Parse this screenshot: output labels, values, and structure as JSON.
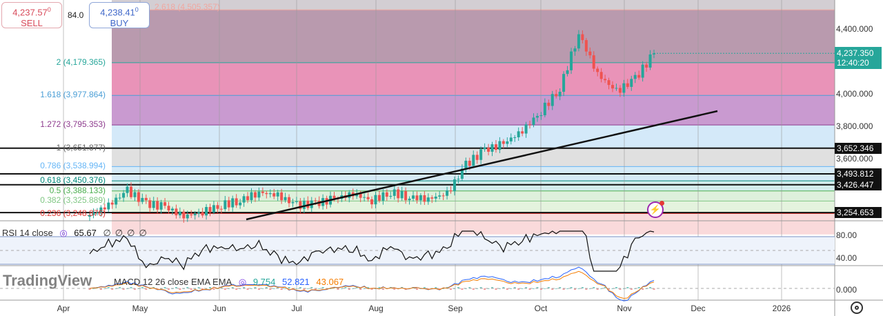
{
  "trade": {
    "sell_price": "4,237.57",
    "sell_sup": "0",
    "sell_label": "SELL",
    "spread": "84.0",
    "buy_price": "4,238.41",
    "buy_sup": "0",
    "buy_label": "BUY"
  },
  "fib_levels": [
    {
      "label": "2.618 (4,505.357)",
      "price": 4505.357,
      "color": "#f0a7a0"
    },
    {
      "label": "2 (4,179.365)",
      "price": 4179.365,
      "color": "#26a69a"
    },
    {
      "label": "1.618 (3,977.864)",
      "price": 3977.864,
      "color": "#4a9ed6"
    },
    {
      "label": "1.272 (3,795.353)",
      "price": 3795.353,
      "color": "#8e3b8e"
    },
    {
      "label": "1 (3,651.877)",
      "price": 3651.877,
      "color": "#666666"
    },
    {
      "label": "0.786 (3,538.994)",
      "price": 3538.994,
      "color": "#64b5f6"
    },
    {
      "label": "0.618 (3,450.376)",
      "price": 3450.376,
      "color": "#00897b"
    },
    {
      "label": "0.5 (3,388.133)",
      "price": 3388.133,
      "color": "#4caf50"
    },
    {
      "label": "0.382 (3,325.889)",
      "price": 3325.889,
      "color": "#81c784"
    },
    {
      "label": "0.236 (3,248.876)",
      "price": 3248.876,
      "color": "#e53935"
    }
  ],
  "fib_zero_price": 3120,
  "price_axis": {
    "ticks": [
      "4,400.000",
      "4,000.000",
      "3,800.000",
      "3,600.000"
    ],
    "tick_values": [
      4400,
      4000,
      3800,
      3600
    ],
    "current_price": "4,237.350",
    "countdown": "12:40:20",
    "horizontal_lines": [
      {
        "label": "3,652.346",
        "price": 3652.346
      },
      {
        "label": "3,493.812",
        "price": 3493.812
      },
      {
        "label": "3,426.447",
        "price": 3426.447
      },
      {
        "label": "3,254.653",
        "price": 3254.653
      }
    ]
  },
  "rsi": {
    "title": "RSI 14 close",
    "value": "65.67",
    "extra": [
      "∅",
      "∅",
      "∅",
      "∅"
    ],
    "ticks": [
      "80.00",
      "40.00"
    ]
  },
  "macd": {
    "title": "MACD 12 26 close EMA EMA",
    "values": [
      "9.754",
      "52.821",
      "43.067"
    ],
    "value_colors": [
      "#26a69a",
      "#2962ff",
      "#f57c00"
    ],
    "ticks": [
      "0.000"
    ]
  },
  "time_axis": [
    "Apr",
    "May",
    "Jun",
    "Jul",
    "Aug",
    "Sep",
    "Oct",
    "Nov",
    "Dec",
    "2026"
  ],
  "watermark": "TradingView",
  "weekly_closes": [
    3240,
    3300,
    3390,
    3310,
    3290,
    3230,
    3260,
    3300,
    3330,
    3380,
    3360,
    3300,
    3310,
    3340,
    3370,
    3330,
    3380,
    3350,
    3340,
    3370,
    3550,
    3640,
    3680,
    3760,
    3880,
    4020,
    4360,
    4110,
    4000,
    4080,
    4237
  ],
  "colors": {
    "up": "#26a69a",
    "down": "#ef5350",
    "current": "#26a69a"
  }
}
